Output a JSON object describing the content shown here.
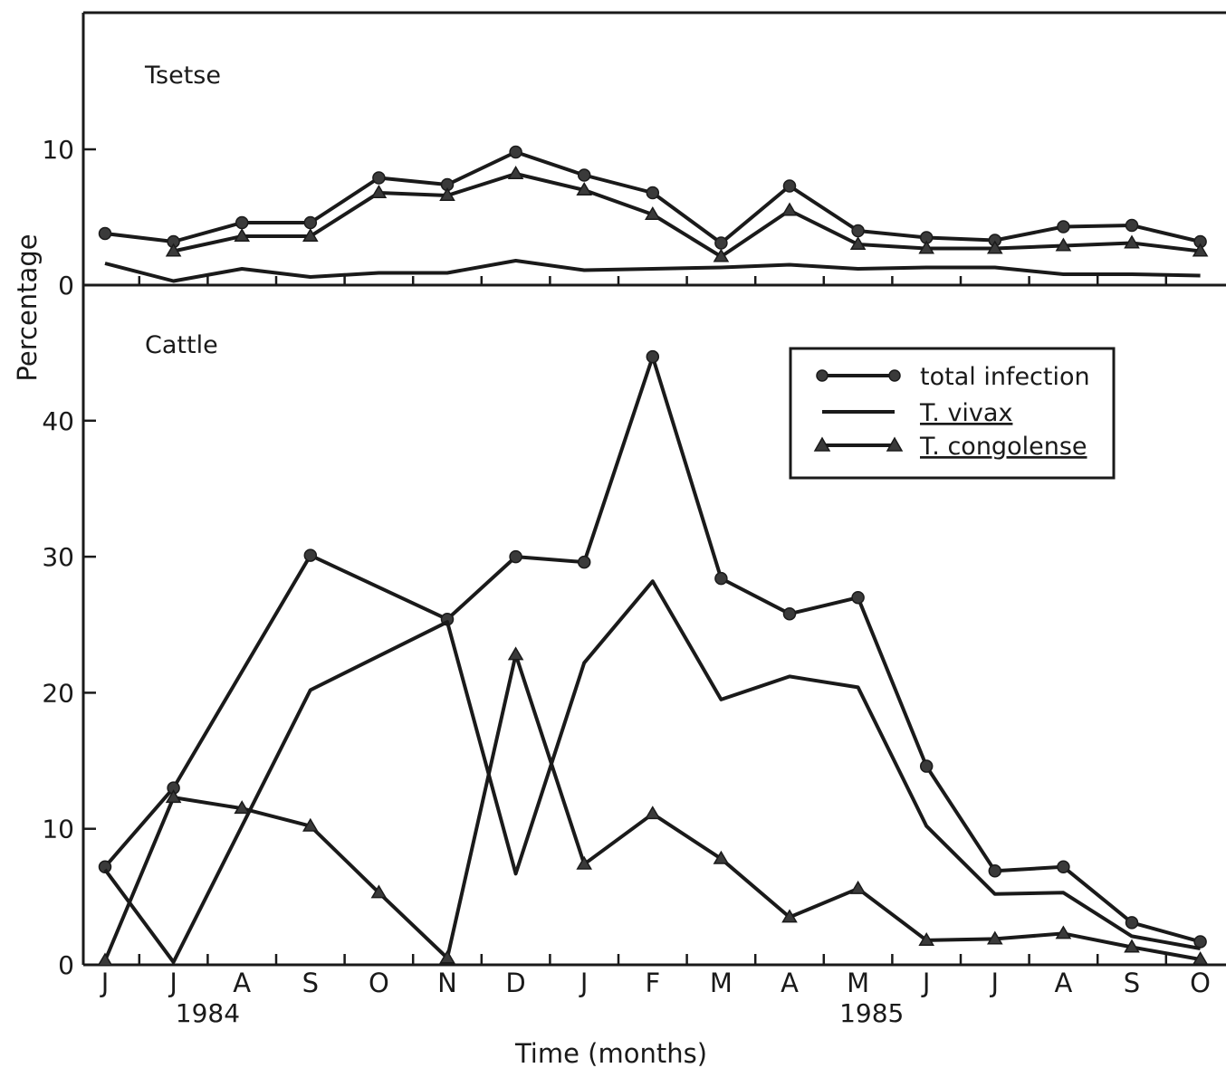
{
  "chart_data": {
    "type": "line",
    "ylabel": "Percentage",
    "xlabel": "Time  (months)",
    "x_categories": [
      "J",
      "J",
      "A",
      "S",
      "O",
      "N",
      "D",
      "J",
      "F",
      "M",
      "A",
      "M",
      "J",
      "J",
      "A",
      "S",
      "O"
    ],
    "year_labels": [
      {
        "text": "1984",
        "after_index": 1.5
      },
      {
        "text": "1985",
        "after_index": 11.2
      }
    ],
    "legend": {
      "position": "top-right",
      "entries": [
        {
          "key": "total",
          "label": "total infection",
          "marker": "circle"
        },
        {
          "key": "vivax",
          "label": "T. vivax",
          "marker": "none"
        },
        {
          "key": "congolense",
          "label": "T. congolense",
          "marker": "triangle"
        }
      ]
    },
    "panels": [
      {
        "name": "Tsetse",
        "ylim": [
          0,
          20
        ],
        "yticks": [
          0,
          10
        ],
        "series": [
          {
            "key": "total",
            "values": [
              3.8,
              3.2,
              4.6,
              4.6,
              7.9,
              7.4,
              9.8,
              8.1,
              6.8,
              3.1,
              7.3,
              4.0,
              3.5,
              3.3,
              4.3,
              4.4,
              3.2
            ]
          },
          {
            "key": "congolense",
            "values": [
              null,
              2.5,
              3.6,
              3.6,
              6.8,
              6.6,
              8.2,
              7.0,
              5.2,
              2.1,
              5.5,
              3.0,
              2.7,
              2.7,
              2.9,
              3.1,
              2.5
            ]
          },
          {
            "key": "vivax",
            "values": [
              1.6,
              0.3,
              1.2,
              0.6,
              0.9,
              0.9,
              1.8,
              1.1,
              1.2,
              1.3,
              1.5,
              1.2,
              1.3,
              1.3,
              0.8,
              0.8,
              0.7
            ]
          }
        ]
      },
      {
        "name": "Cattle",
        "ylim": [
          0,
          50
        ],
        "yticks": [
          0,
          10,
          20,
          30,
          40
        ],
        "series": [
          {
            "key": "total",
            "values": [
              7.2,
              13.0,
              null,
              30.1,
              null,
              25.4,
              30.0,
              29.6,
              44.7,
              28.4,
              25.8,
              27.0,
              14.6,
              6.9,
              7.2,
              3.1,
              1.7
            ]
          },
          {
            "key": "vivax",
            "values": [
              7.0,
              0.2,
              null,
              20.2,
              null,
              25.2,
              6.7,
              22.2,
              28.2,
              19.5,
              21.2,
              20.4,
              10.2,
              5.2,
              5.3,
              2.1,
              1.2
            ]
          },
          {
            "key": "congolense",
            "values": [
              0.3,
              12.3,
              11.5,
              10.2,
              5.3,
              0.5,
              22.8,
              7.4,
              11.1,
              7.8,
              3.5,
              5.6,
              1.8,
              1.9,
              2.3,
              1.3,
              0.4
            ]
          }
        ]
      }
    ]
  }
}
